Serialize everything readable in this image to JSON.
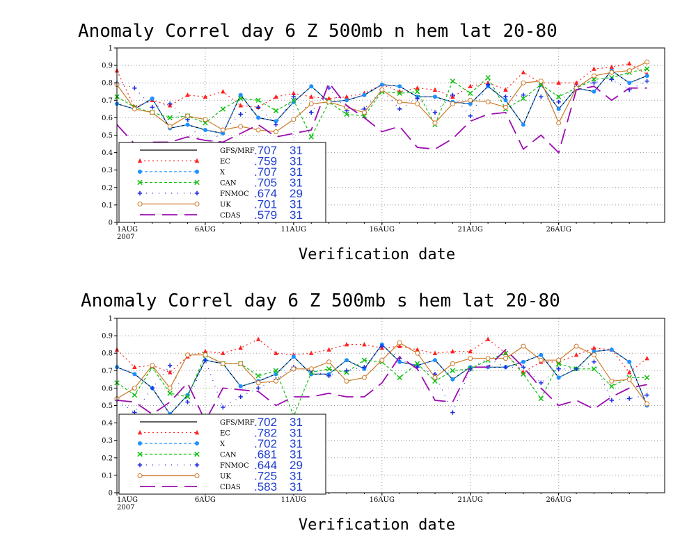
{
  "chart_data": [
    {
      "type": "line",
      "title": "Anomaly Correl  day 6  Z 500mb  n hem  lat 20-80",
      "xlabel": "Verification date",
      "ylabel": "",
      "ylim": [
        0,
        1
      ],
      "yticks": [
        "0",
        "0.1",
        "0.2",
        "0.3",
        "0.4",
        "0.5",
        "0.6",
        "0.7",
        "0.8",
        "0.9",
        "1"
      ],
      "xticks": [
        {
          "day": 1,
          "label": "1AUG",
          "sub": "2007"
        },
        {
          "day": 6,
          "label": "6AUG"
        },
        {
          "day": 11,
          "label": "11AUG"
        },
        {
          "day": 16,
          "label": "16AUG"
        },
        {
          "day": 21,
          "label": "21AUG"
        },
        {
          "day": 26,
          "label": "26AUG"
        }
      ],
      "x": [
        1,
        2,
        3,
        4,
        5,
        6,
        7,
        8,
        9,
        10,
        11,
        12,
        13,
        14,
        15,
        16,
        17,
        18,
        19,
        20,
        21,
        22,
        23,
        24,
        25,
        26,
        27,
        28,
        29,
        30,
        31
      ],
      "grid": true,
      "legend": "bottom-left",
      "series": [
        {
          "name": "GFS/MRF",
          "score": ".707",
          "count": "31",
          "color": "#000000",
          "dash": "none",
          "marker": "none",
          "values": [
            0.68,
            0.65,
            0.71,
            0.54,
            0.56,
            0.53,
            0.51,
            0.73,
            0.6,
            0.58,
            0.69,
            0.78,
            0.69,
            0.7,
            0.73,
            0.79,
            0.78,
            0.72,
            0.72,
            0.69,
            0.68,
            0.78,
            0.7,
            0.56,
            0.79,
            0.65,
            0.77,
            0.75,
            0.87,
            0.8,
            0.84
          ]
        },
        {
          "name": "EC",
          "score": ".759",
          "count": "31",
          "color": "#ff2020",
          "dash": "2,4",
          "marker": "triangle",
          "values": [
            0.87,
            0.66,
            0.7,
            0.67,
            0.73,
            0.72,
            0.75,
            0.67,
            0.66,
            0.72,
            0.74,
            0.72,
            0.71,
            0.72,
            0.74,
            0.79,
            0.75,
            0.77,
            0.76,
            0.72,
            0.78,
            0.8,
            0.76,
            0.86,
            0.8,
            0.8,
            0.8,
            0.88,
            0.89,
            0.91,
            0.85
          ]
        },
        {
          "name": "X",
          "score": ".707",
          "count": "31",
          "color": "#1e90ff",
          "dash": "4,3",
          "marker": "circle",
          "values": [
            0.68,
            0.65,
            0.71,
            0.54,
            0.56,
            0.53,
            0.51,
            0.73,
            0.6,
            0.58,
            0.69,
            0.78,
            0.69,
            0.7,
            0.73,
            0.79,
            0.78,
            0.72,
            0.72,
            0.69,
            0.68,
            0.78,
            0.7,
            0.56,
            0.79,
            0.65,
            0.77,
            0.75,
            0.87,
            0.8,
            0.84
          ]
        },
        {
          "name": "CAN",
          "score": ".705",
          "count": "31",
          "color": "#12c012",
          "dash": "4,3",
          "marker": "x",
          "values": [
            0.72,
            0.66,
            0.63,
            0.6,
            0.61,
            0.57,
            0.65,
            0.71,
            0.7,
            0.64,
            0.7,
            0.49,
            0.69,
            0.62,
            0.61,
            0.75,
            0.74,
            0.75,
            0.56,
            0.81,
            0.74,
            0.83,
            0.65,
            0.71,
            0.79,
            0.72,
            0.77,
            0.82,
            0.83,
            0.86,
            0.88
          ]
        },
        {
          "name": "FNMOC",
          "score": ".674",
          "count": "29",
          "color": "#1b2be0",
          "dash": "1,8",
          "marker": "plus",
          "values": [
            0.8,
            0.77,
            0.66,
            0.68,
            0.59,
            0.42,
            0.53,
            0.62,
            0.66,
            0.56,
            0.72,
            0.63,
            0.77,
            0.64,
            0.65,
            0.76,
            0.65,
            0.71,
            0.63,
            0.73,
            0.61,
            0.79,
            0.72,
            0.73,
            0.72,
            0.69,
            0.78,
            0.8,
            0.82,
            0.76,
            0.81
          ]
        },
        {
          "name": "UK",
          "score": ".701",
          "count": "31",
          "color": "#cc7a29",
          "dash": "none",
          "marker": "ocircle",
          "values": [
            0.79,
            0.65,
            0.63,
            0.55,
            0.61,
            0.59,
            0.53,
            0.55,
            0.53,
            0.52,
            0.59,
            0.68,
            0.69,
            0.66,
            0.63,
            0.76,
            0.69,
            0.68,
            0.57,
            0.68,
            0.7,
            0.69,
            0.66,
            0.8,
            0.81,
            0.57,
            0.77,
            0.84,
            0.86,
            0.87,
            0.92
          ]
        },
        {
          "name": "CDAS",
          "score": ".579",
          "count": "31",
          "color": "#9c0cb0",
          "dash": "22,10",
          "marker": "none",
          "values": [
            0.56,
            0.45,
            0.46,
            0.46,
            0.49,
            0.47,
            0.46,
            0.51,
            0.56,
            0.49,
            0.51,
            0.53,
            0.8,
            0.67,
            0.6,
            0.52,
            0.55,
            0.43,
            0.42,
            0.48,
            0.58,
            0.62,
            0.63,
            0.42,
            0.5,
            0.4,
            0.76,
            0.78,
            0.7,
            0.77,
            0.77
          ]
        }
      ]
    },
    {
      "type": "line",
      "title": "Anomaly Correl  day 6  Z 500mb  s hem  lat 20-80",
      "xlabel": "Verification date",
      "ylabel": "",
      "ylim": [
        0,
        1
      ],
      "yticks": [
        "0",
        "0.1",
        "0.2",
        "0.3",
        "0.4",
        "0.5",
        "0.6",
        "0.7",
        "0.8",
        "0.9",
        "1"
      ],
      "xticks": [
        {
          "day": 1,
          "label": "1AUG",
          "sub": "2007"
        },
        {
          "day": 6,
          "label": "6AUG"
        },
        {
          "day": 11,
          "label": "11AUG"
        },
        {
          "day": 16,
          "label": "16AUG"
        },
        {
          "day": 21,
          "label": "21AUG"
        },
        {
          "day": 26,
          "label": "26AUG"
        }
      ],
      "x": [
        1,
        2,
        3,
        4,
        5,
        6,
        7,
        8,
        9,
        10,
        11,
        12,
        13,
        14,
        15,
        16,
        17,
        18,
        19,
        20,
        21,
        22,
        23,
        24,
        25,
        26,
        27,
        28,
        29,
        30,
        31
      ],
      "grid": true,
      "legend": "bottom-left",
      "series": [
        {
          "name": "GFS/MRF",
          "score": ".702",
          "count": "31",
          "color": "#000000",
          "dash": "none",
          "marker": "none",
          "values": [
            0.72,
            0.68,
            0.6,
            0.45,
            0.56,
            0.76,
            0.74,
            0.61,
            0.64,
            0.68,
            0.78,
            0.68,
            0.68,
            0.76,
            0.71,
            0.85,
            0.75,
            0.73,
            0.76,
            0.65,
            0.72,
            0.72,
            0.72,
            0.75,
            0.79,
            0.66,
            0.71,
            0.81,
            0.82,
            0.75,
            0.5
          ]
        },
        {
          "name": "EC",
          "score": ".782",
          "count": "31",
          "color": "#ff2020",
          "dash": "2,4",
          "marker": "triangle",
          "values": [
            0.82,
            0.72,
            0.73,
            0.69,
            0.78,
            0.81,
            0.8,
            0.83,
            0.88,
            0.8,
            0.79,
            0.8,
            0.82,
            0.85,
            0.85,
            0.83,
            0.84,
            0.82,
            0.8,
            0.81,
            0.81,
            0.88,
            0.8,
            0.69,
            0.75,
            0.75,
            0.79,
            0.83,
            0.82,
            0.69,
            0.77
          ]
        },
        {
          "name": "X",
          "score": ".702",
          "count": "31",
          "color": "#1e90ff",
          "dash": "4,3",
          "marker": "circle",
          "values": [
            0.72,
            0.68,
            0.6,
            0.45,
            0.56,
            0.76,
            0.74,
            0.61,
            0.64,
            0.68,
            0.78,
            0.68,
            0.68,
            0.76,
            0.71,
            0.85,
            0.75,
            0.73,
            0.76,
            0.65,
            0.72,
            0.72,
            0.72,
            0.75,
            0.79,
            0.66,
            0.71,
            0.81,
            0.82,
            0.75,
            0.5
          ]
        },
        {
          "name": "CAN",
          "score": ".681",
          "count": "31",
          "color": "#12c012",
          "dash": "4,3",
          "marker": "x",
          "values": [
            0.63,
            0.56,
            0.72,
            0.57,
            0.55,
            0.79,
            0.74,
            0.74,
            0.67,
            0.7,
            0.44,
            0.69,
            0.71,
            0.69,
            0.76,
            0.75,
            0.66,
            0.74,
            0.64,
            0.7,
            0.71,
            0.76,
            0.8,
            0.68,
            0.54,
            0.74,
            0.71,
            0.71,
            0.61,
            0.66,
            0.66
          ]
        },
        {
          "name": "FNMOC",
          "score": ".644",
          "count": "29",
          "color": "#1b2be0",
          "dash": "1,8",
          "marker": "plus",
          "values": [
            0.53,
            0.46,
            0.6,
            0.73,
            0.52,
            0.76,
            0.49,
            0.55,
            0.6,
            0.65,
            0.72,
            0.7,
            0.67,
            0.7,
            0.72,
            0.84,
            0.77,
            0.72,
            0.68,
            0.46,
            0.71,
            0.77,
            0.72,
            0.72,
            0.63,
            0.71,
            0.71,
            0.75,
            0.53,
            0.54,
            0.56
          ]
        },
        {
          "name": "UK",
          "score": ".725",
          "count": "31",
          "color": "#cc7a29",
          "dash": "none",
          "marker": "ocircle",
          "values": [
            0.54,
            0.6,
            0.73,
            0.6,
            0.79,
            0.79,
            0.74,
            0.74,
            0.63,
            0.64,
            0.71,
            0.71,
            0.75,
            0.64,
            0.66,
            0.76,
            0.86,
            0.8,
            0.66,
            0.74,
            0.77,
            0.77,
            0.77,
            0.84,
            0.76,
            0.76,
            0.84,
            0.79,
            0.64,
            0.65,
            0.51
          ]
        },
        {
          "name": "CDAS",
          "score": ".583",
          "count": "31",
          "color": "#9c0cb0",
          "dash": "22,10",
          "marker": "none",
          "values": [
            0.53,
            0.52,
            0.45,
            0.52,
            0.63,
            0.41,
            0.6,
            0.59,
            0.58,
            0.5,
            0.55,
            0.55,
            0.57,
            0.55,
            0.55,
            0.63,
            0.78,
            0.71,
            0.53,
            0.52,
            0.72,
            0.72,
            0.82,
            0.72,
            0.6,
            0.5,
            0.53,
            0.48,
            0.55,
            0.6,
            0.62
          ]
        }
      ]
    }
  ]
}
